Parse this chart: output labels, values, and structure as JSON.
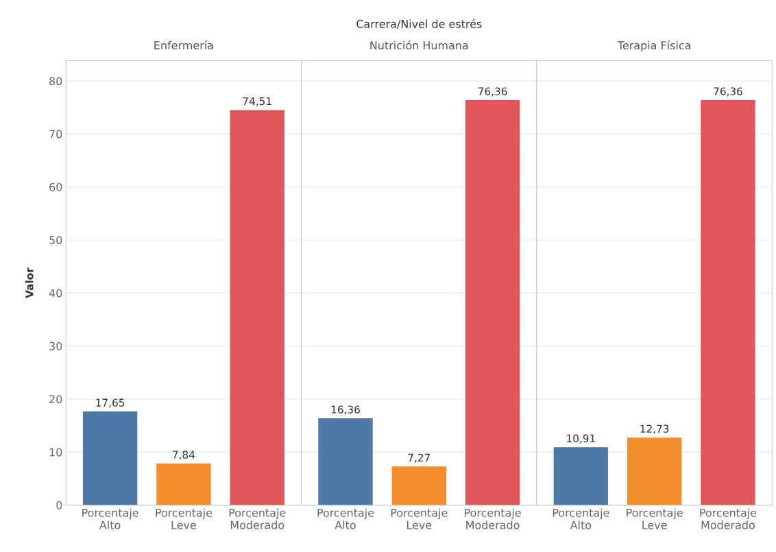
{
  "chart_data": [
    {
      "type": "bar",
      "title": "Enfermería",
      "ylabel": "Valor",
      "annotations": [
        "Carrera/Nivel de estrés"
      ],
      "categories": [
        "Porcentaje\nAlto",
        "Porcentaje\nLeve",
        "Porcentaje\nModerado"
      ],
      "values": [
        17.65,
        7.84,
        74.51
      ],
      "colors": [
        "#4e79a7",
        "#f28e2b",
        "#e15759"
      ],
      "value_labels": [
        "17,65",
        "7,84",
        "74,51"
      ],
      "ylim": [
        0,
        83.8
      ],
      "yticks": [
        0,
        10,
        20,
        30,
        40,
        50,
        60,
        70,
        80
      ],
      "grid": "y"
    },
    {
      "type": "bar",
      "title": "Nutrición Humana",
      "categories": [
        "Porcentaje\nAlto",
        "Porcentaje\nLeve",
        "Porcentaje\nModerado"
      ],
      "values": [
        16.36,
        7.27,
        76.36
      ],
      "colors": [
        "#4e79a7",
        "#f28e2b",
        "#e15759"
      ],
      "value_labels": [
        "16,36",
        "7,27",
        "76,36"
      ],
      "ylim": [
        0,
        83.8
      ],
      "yticks": [
        0,
        10,
        20,
        30,
        40,
        50,
        60,
        70,
        80
      ],
      "grid": "y",
      "tick_labels": "x"
    },
    {
      "type": "bar",
      "title": "Terapia Física",
      "categories": [
        "Porcentaje\nAlto",
        "Porcentaje\nLeve",
        "Porcentaje\nModerado"
      ],
      "values": [
        10.91,
        12.73,
        76.36
      ],
      "colors": [
        "#4e79a7",
        "#f28e2b",
        "#e15759"
      ],
      "value_labels": [
        "10,91",
        "12,73",
        "76,36"
      ],
      "ylim": [
        0,
        83.8
      ],
      "yticks": [
        0,
        10,
        20,
        30,
        40,
        50,
        60,
        70,
        80
      ],
      "grid": "y",
      "tick_labels": "x"
    }
  ]
}
